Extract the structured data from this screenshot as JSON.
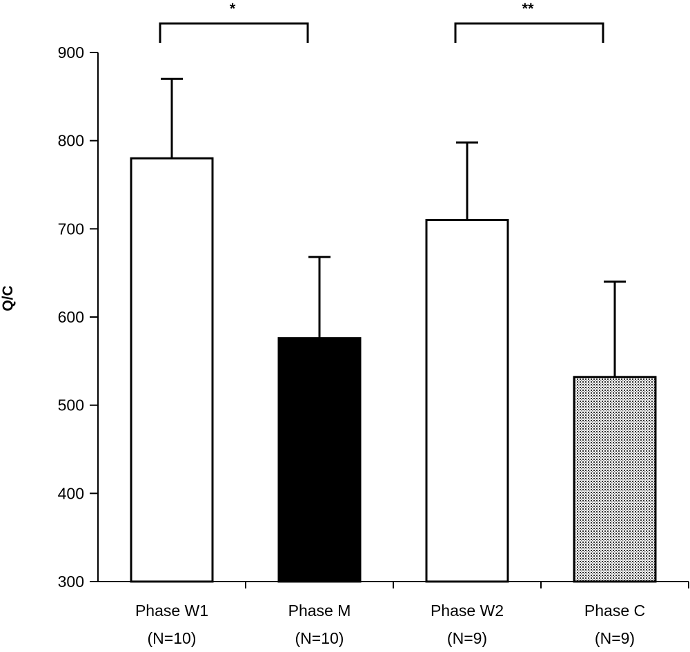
{
  "chart_data": {
    "type": "bar",
    "title": "",
    "xlabel": "",
    "ylabel": "Q/C",
    "ylim": [
      300,
      900
    ],
    "yticks": [
      300,
      400,
      500,
      600,
      700,
      800,
      900
    ],
    "categories": [
      {
        "label": "Phase W1",
        "n": "(N=10)",
        "value": 780,
        "error": 90,
        "fill": "white"
      },
      {
        "label": "Phase M",
        "n": "(N=10)",
        "value": 576,
        "error": 92,
        "fill": "black"
      },
      {
        "label": "Phase W2",
        "n": "(N=9)",
        "value": 710,
        "error": 88,
        "fill": "white"
      },
      {
        "label": "Phase C",
        "n": "(N=9)",
        "value": 532,
        "error": 108,
        "fill": "dotted"
      }
    ],
    "significance": [
      {
        "from": 0,
        "to": 1,
        "label": "*"
      },
      {
        "from": 2,
        "to": 3,
        "label": "**"
      }
    ]
  }
}
